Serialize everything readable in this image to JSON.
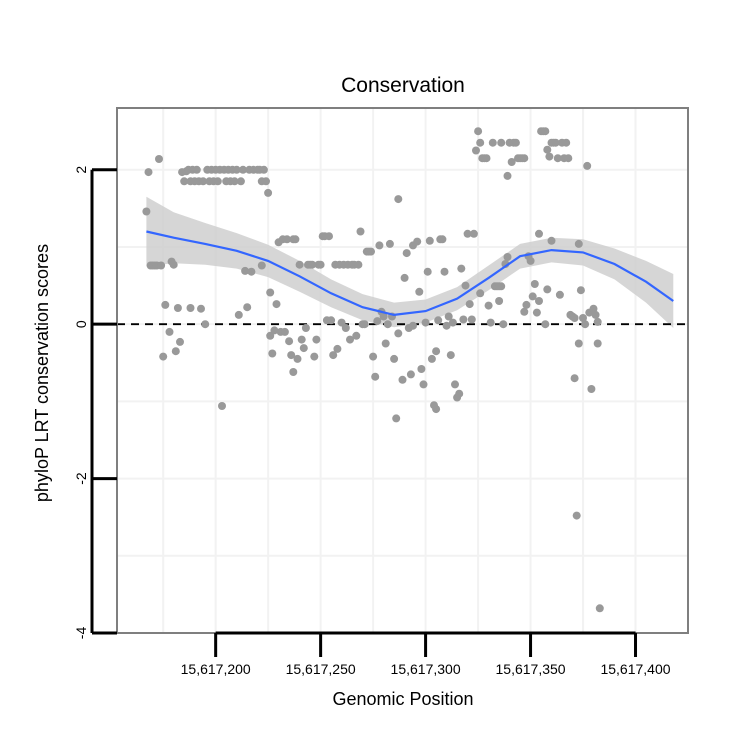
{
  "chart_data": {
    "type": "scatter",
    "title": "Conservation",
    "xlabel": "Genomic Position",
    "ylabel": "phyloP LRT conservation scores",
    "xlim": [
      15617153,
      15617425
    ],
    "ylim": [
      -4,
      2.8
    ],
    "x_ticks": [
      15617200,
      15617250,
      15617300,
      15617350,
      15617400
    ],
    "x_tick_labels": [
      "15,617,200",
      "15,617,250",
      "15,617,300",
      "15,617,350",
      "15,617,400"
    ],
    "y_ticks": [
      -4,
      -2,
      0,
      2
    ],
    "y_tick_labels": [
      "-4",
      "-2",
      "0",
      "2"
    ],
    "reference_line_y": 0,
    "colors": {
      "points": "#999999",
      "smooth": "#3366ff",
      "ribbon": "#cccccc",
      "refline": "#000000",
      "frame": "#7f7f7f",
      "grid": "#f2f2f2"
    },
    "points": [
      [
        15617167,
        1.46
      ],
      [
        15617168,
        1.97
      ],
      [
        15617169,
        0.76
      ],
      [
        15617170,
        0.76
      ],
      [
        15617171,
        0.76
      ],
      [
        15617172,
        0.76
      ],
      [
        15617173,
        2.14
      ],
      [
        15617174,
        0.76
      ],
      [
        15617175,
        -0.42
      ],
      [
        15617176,
        0.25
      ],
      [
        15617178,
        -0.1
      ],
      [
        15617179,
        0.81
      ],
      [
        15617180,
        0.77
      ],
      [
        15617181,
        -0.35
      ],
      [
        15617182,
        0.21
      ],
      [
        15617183,
        -0.23
      ],
      [
        15617184,
        1.97
      ],
      [
        15617185,
        1.85
      ],
      [
        15617186,
        1.98
      ],
      [
        15617187,
        2.0
      ],
      [
        15617188,
        1.85
      ],
      [
        15617188,
        0.21
      ],
      [
        15617189,
        2.0
      ],
      [
        15617190,
        1.85
      ],
      [
        15617191,
        2.0
      ],
      [
        15617192,
        1.85
      ],
      [
        15617193,
        0.2
      ],
      [
        15617194,
        1.85
      ],
      [
        15617195,
        0.0
      ],
      [
        15617196,
        2.0
      ],
      [
        15617197,
        1.85
      ],
      [
        15617198,
        2.0
      ],
      [
        15617199,
        1.85
      ],
      [
        15617200,
        2.0
      ],
      [
        15617201,
        1.85
      ],
      [
        15617202,
        2.0
      ],
      [
        15617203,
        -1.06
      ],
      [
        15617204,
        2.0
      ],
      [
        15617205,
        1.85
      ],
      [
        15617206,
        2.0
      ],
      [
        15617207,
        1.85
      ],
      [
        15617208,
        2.0
      ],
      [
        15617209,
        1.85
      ],
      [
        15617210,
        2.0
      ],
      [
        15617211,
        0.12
      ],
      [
        15617212,
        1.85
      ],
      [
        15617213,
        2.0
      ],
      [
        15617214,
        0.69
      ],
      [
        15617215,
        0.22
      ],
      [
        15617216,
        2.0
      ],
      [
        15617217,
        0.68
      ],
      [
        15617218,
        2.0
      ],
      [
        15617220,
        2.0
      ],
      [
        15617221,
        2.0
      ],
      [
        15617222,
        0.76
      ],
      [
        15617222,
        1.85
      ],
      [
        15617223,
        2.0
      ],
      [
        15617224,
        1.85
      ],
      [
        15617225,
        1.7
      ],
      [
        15617226,
        0.41
      ],
      [
        15617226,
        -0.15
      ],
      [
        15617227,
        -0.38
      ],
      [
        15617228,
        -0.08
      ],
      [
        15617229,
        0.26
      ],
      [
        15617230,
        1.06
      ],
      [
        15617231,
        -0.1
      ],
      [
        15617232,
        1.1
      ],
      [
        15617233,
        -0.1
      ],
      [
        15617234,
        1.1
      ],
      [
        15617235,
        -0.22
      ],
      [
        15617236,
        -0.4
      ],
      [
        15617237,
        1.1
      ],
      [
        15617237,
        -0.62
      ],
      [
        15617238,
        1.1
      ],
      [
        15617239,
        -0.45
      ],
      [
        15617240,
        0.77
      ],
      [
        15617241,
        -0.2
      ],
      [
        15617242,
        -0.31
      ],
      [
        15617243,
        -0.05
      ],
      [
        15617244,
        0.77
      ],
      [
        15617245,
        0.77
      ],
      [
        15617246,
        0.77
      ],
      [
        15617247,
        -0.42
      ],
      [
        15617248,
        -0.2
      ],
      [
        15617249,
        0.77
      ],
      [
        15617250,
        0.77
      ],
      [
        15617251,
        1.14
      ],
      [
        15617252,
        1.14
      ],
      [
        15617253,
        0.05
      ],
      [
        15617254,
        1.14
      ],
      [
        15617255,
        0.05
      ],
      [
        15617256,
        -0.4
      ],
      [
        15617257,
        0.77
      ],
      [
        15617258,
        -0.32
      ],
      [
        15617259,
        0.77
      ],
      [
        15617260,
        0.02
      ],
      [
        15617261,
        0.77
      ],
      [
        15617262,
        -0.05
      ],
      [
        15617263,
        0.77
      ],
      [
        15617264,
        -0.2
      ],
      [
        15617265,
        0.77
      ],
      [
        15617266,
        0.77
      ],
      [
        15617267,
        -0.15
      ],
      [
        15617268,
        0.77
      ],
      [
        15617269,
        1.2
      ],
      [
        15617270,
        0.0
      ],
      [
        15617271,
        0.0
      ],
      [
        15617272,
        0.94
      ],
      [
        15617273,
        0.94
      ],
      [
        15617274,
        0.94
      ],
      [
        15617275,
        -0.42
      ],
      [
        15617276,
        -0.68
      ],
      [
        15617277,
        0.04
      ],
      [
        15617278,
        1.02
      ],
      [
        15617279,
        0.16
      ],
      [
        15617280,
        0.1
      ],
      [
        15617281,
        -0.25
      ],
      [
        15617282,
        0.0
      ],
      [
        15617283,
        1.04
      ],
      [
        15617284,
        0.1
      ],
      [
        15617285,
        -0.45
      ],
      [
        15617286,
        -1.22
      ],
      [
        15617287,
        1.62
      ],
      [
        15617287,
        -0.12
      ],
      [
        15617289,
        -0.72
      ],
      [
        15617290,
        0.6
      ],
      [
        15617291,
        0.92
      ],
      [
        15617292,
        -0.05
      ],
      [
        15617293,
        -0.65
      ],
      [
        15617294,
        1.02
      ],
      [
        15617294,
        -0.02
      ],
      [
        15617296,
        1.07
      ],
      [
        15617297,
        0.42
      ],
      [
        15617298,
        -0.58
      ],
      [
        15617299,
        -0.78
      ],
      [
        15617300,
        0.02
      ],
      [
        15617301,
        0.68
      ],
      [
        15617302,
        1.08
      ],
      [
        15617303,
        -0.45
      ],
      [
        15617304,
        -1.05
      ],
      [
        15617305,
        -1.1
      ],
      [
        15617305,
        -0.35
      ],
      [
        15617306,
        0.05
      ],
      [
        15617307,
        1.1
      ],
      [
        15617308,
        1.1
      ],
      [
        15617309,
        0.68
      ],
      [
        15617310,
        -0.02
      ],
      [
        15617311,
        0.1
      ],
      [
        15617312,
        -0.4
      ],
      [
        15617313,
        0.02
      ],
      [
        15617314,
        -0.78
      ],
      [
        15617315,
        -0.95
      ],
      [
        15617316,
        -0.9
      ],
      [
        15617317,
        0.72
      ],
      [
        15617318,
        0.06
      ],
      [
        15617319,
        0.5
      ],
      [
        15617320,
        1.17
      ],
      [
        15617321,
        0.26
      ],
      [
        15617322,
        0.06
      ],
      [
        15617323,
        1.17
      ],
      [
        15617324,
        2.25
      ],
      [
        15617325,
        2.5
      ],
      [
        15617326,
        2.35
      ],
      [
        15617326,
        0.4
      ],
      [
        15617327,
        2.15
      ],
      [
        15617328,
        2.15
      ],
      [
        15617329,
        2.15
      ],
      [
        15617330,
        0.24
      ],
      [
        15617331,
        0.02
      ],
      [
        15617332,
        2.35
      ],
      [
        15617333,
        0.49
      ],
      [
        15617334,
        0.49
      ],
      [
        15617335,
        0.49
      ],
      [
        15617335,
        0.3
      ],
      [
        15617336,
        2.35
      ],
      [
        15617336,
        0.49
      ],
      [
        15617337,
        0.0
      ],
      [
        15617338,
        0.78
      ],
      [
        15617339,
        1.92
      ],
      [
        15617339,
        0.87
      ],
      [
        15617340,
        2.35
      ],
      [
        15617341,
        2.1
      ],
      [
        15617342,
        2.35
      ],
      [
        15617343,
        2.35
      ],
      [
        15617344,
        2.15
      ],
      [
        15617345,
        2.15
      ],
      [
        15617346,
        2.15
      ],
      [
        15617347,
        2.15
      ],
      [
        15617347,
        0.16
      ],
      [
        15617348,
        0.25
      ],
      [
        15617349,
        0.88
      ],
      [
        15617350,
        0.82
      ],
      [
        15617351,
        0.36
      ],
      [
        15617352,
        0.52
      ],
      [
        15617353,
        0.15
      ],
      [
        15617354,
        1.17
      ],
      [
        15617354,
        0.3
      ],
      [
        15617355,
        2.5
      ],
      [
        15617356,
        2.5
      ],
      [
        15617357,
        2.5
      ],
      [
        15617357,
        0.0
      ],
      [
        15617358,
        2.26
      ],
      [
        15617358,
        0.45
      ],
      [
        15617359,
        2.17
      ],
      [
        15617360,
        2.35
      ],
      [
        15617360,
        1.08
      ],
      [
        15617361,
        2.35
      ],
      [
        15617362,
        2.35
      ],
      [
        15617363,
        2.15
      ],
      [
        15617364,
        0.38
      ],
      [
        15617365,
        2.35
      ],
      [
        15617366,
        2.15
      ],
      [
        15617367,
        2.35
      ],
      [
        15617368,
        2.15
      ],
      [
        15617369,
        0.12
      ],
      [
        15617370,
        0.1
      ],
      [
        15617371,
        0.08
      ],
      [
        15617371,
        -0.7
      ],
      [
        15617372,
        -2.48
      ],
      [
        15617373,
        1.04
      ],
      [
        15617373,
        -0.25
      ],
      [
        15617374,
        0.44
      ],
      [
        15617375,
        0.08
      ],
      [
        15617376,
        0.0
      ],
      [
        15617377,
        2.05
      ],
      [
        15617378,
        0.15
      ],
      [
        15617379,
        -0.84
      ],
      [
        15617380,
        0.2
      ],
      [
        15617381,
        0.12
      ],
      [
        15617382,
        -0.25
      ],
      [
        15617382,
        0.03
      ],
      [
        15617383,
        -3.68
      ]
    ],
    "smooth": [
      [
        15617167,
        1.2
      ],
      [
        15617180,
        1.12
      ],
      [
        15617195,
        1.04
      ],
      [
        15617210,
        0.95
      ],
      [
        15617225,
        0.82
      ],
      [
        15617240,
        0.62
      ],
      [
        15617255,
        0.4
      ],
      [
        15617270,
        0.22
      ],
      [
        15617285,
        0.12
      ],
      [
        15617300,
        0.17
      ],
      [
        15617315,
        0.33
      ],
      [
        15617330,
        0.6
      ],
      [
        15617345,
        0.88
      ],
      [
        15617360,
        0.96
      ],
      [
        15617375,
        0.93
      ],
      [
        15617390,
        0.78
      ],
      [
        15617405,
        0.55
      ],
      [
        15617418,
        0.3
      ]
    ],
    "ribbon_half_width": [
      0.45,
      0.33,
      0.27,
      0.23,
      0.21,
      0.2,
      0.18,
      0.17,
      0.16,
      0.15,
      0.15,
      0.16,
      0.16,
      0.16,
      0.17,
      0.2,
      0.27,
      0.35
    ]
  }
}
